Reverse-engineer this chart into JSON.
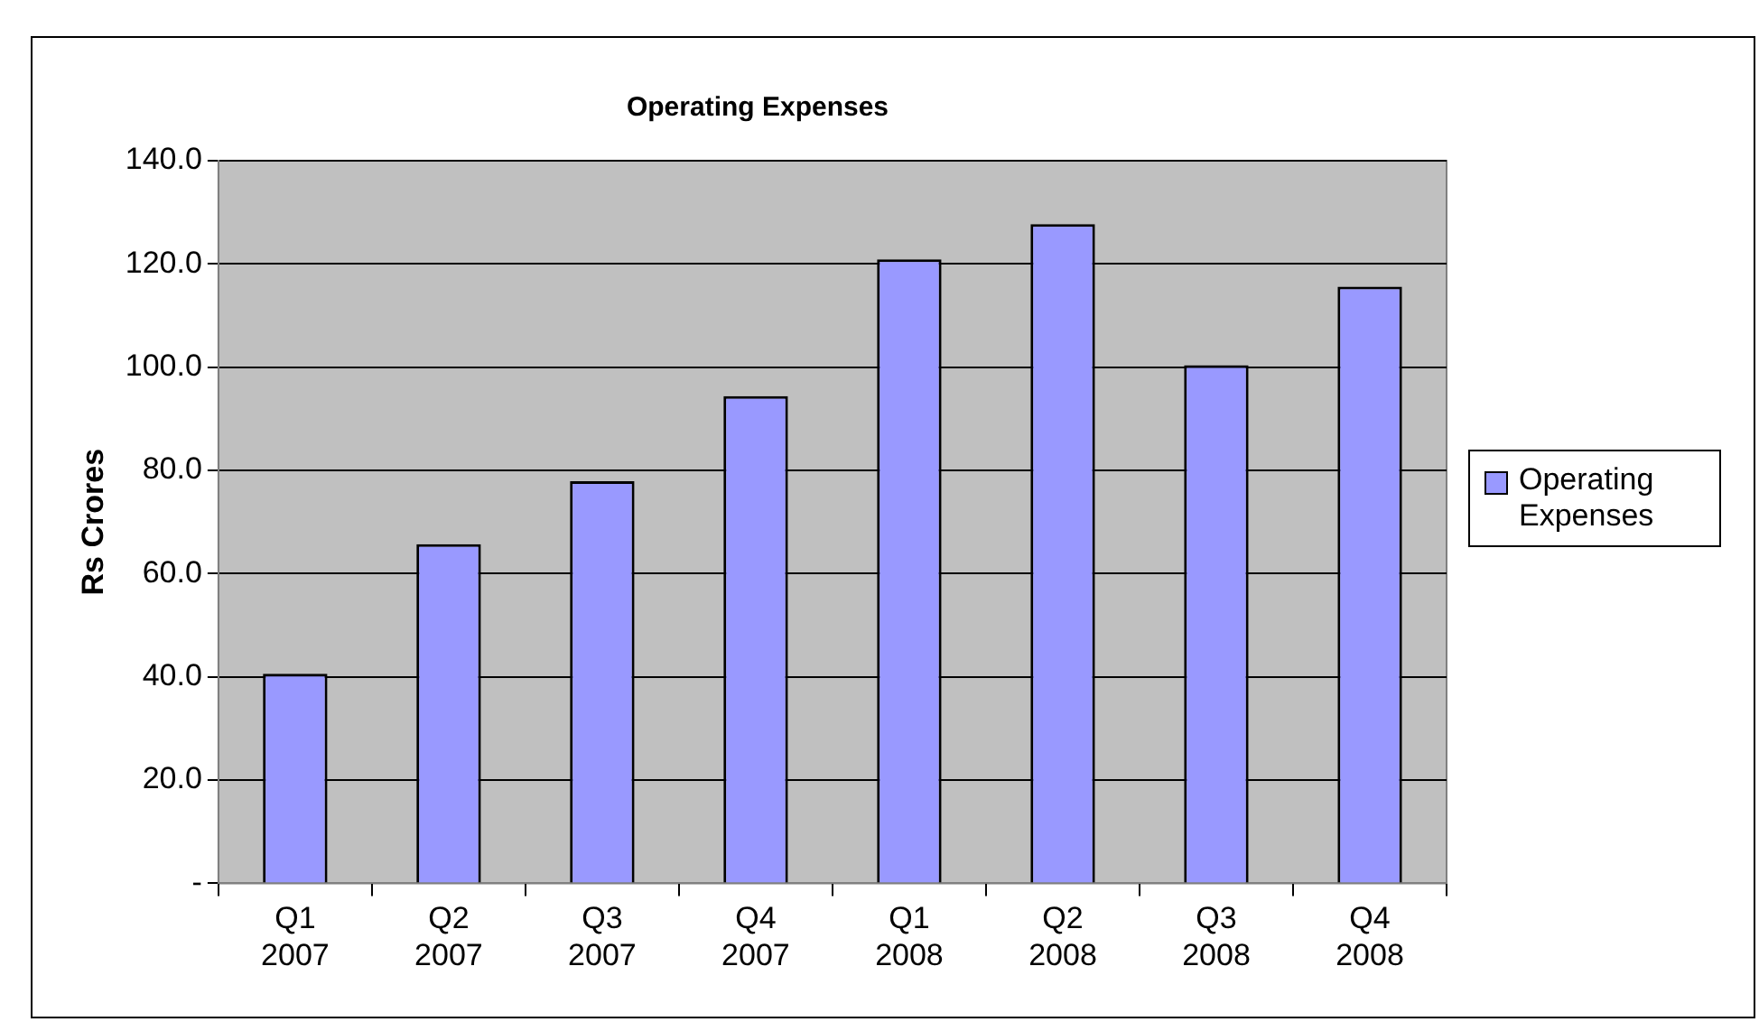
{
  "chart_data": {
    "type": "bar",
    "title": "Operating Expenses",
    "ylabel": "Rs Crores",
    "categories": [
      "Q1 2007",
      "Q2 2007",
      "Q3 2007",
      "Q4 2007",
      "Q1 2008",
      "Q2 2008",
      "Q3 2008",
      "Q4 2008"
    ],
    "series": [
      {
        "name": "Operating Expenses",
        "color": "#9999ff",
        "values": [
          40.6,
          65.7,
          77.9,
          94.4,
          120.9,
          127.7,
          100.4,
          115.6
        ]
      }
    ],
    "ylim": [
      0,
      140
    ],
    "yticks": [
      {
        "value": 0,
        "label": "-"
      },
      {
        "value": 20,
        "label": "20.0"
      },
      {
        "value": 40,
        "label": "40.0"
      },
      {
        "value": 60,
        "label": "60.0"
      },
      {
        "value": 80,
        "label": "80.0"
      },
      {
        "value": 100,
        "label": "100.0"
      },
      {
        "value": 120,
        "label": "120.0"
      },
      {
        "value": 140,
        "label": "140.0"
      }
    ],
    "grid": "y",
    "legend": "right"
  }
}
